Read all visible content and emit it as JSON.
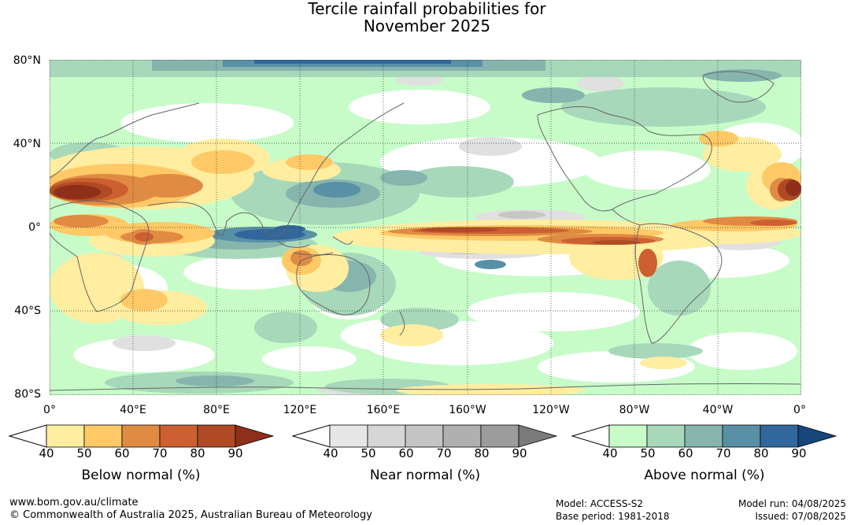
{
  "title_line1": "Tercile rainfall probabilities for",
  "title_line2": "November 2025",
  "map": {
    "lat_ticks": [
      "80°N",
      "40°N",
      "0°",
      "40°S",
      "80°S"
    ],
    "lon_ticks": [
      "0°",
      "40°E",
      "80°E",
      "120°E",
      "160°E",
      "160°W",
      "120°W",
      "80°W",
      "40°W",
      "0°"
    ]
  },
  "legends": [
    {
      "title": "Below normal (%)",
      "ticks": [
        "40",
        "50",
        "60",
        "70",
        "80",
        "90"
      ],
      "colors": [
        "#ffeda0",
        "#fec966",
        "#e08b43",
        "#cc6030",
        "#b04a25",
        "#8e2f1a"
      ]
    },
    {
      "title": "Near normal (%)",
      "ticks": [
        "40",
        "50",
        "60",
        "70",
        "80",
        "90"
      ],
      "colors": [
        "#e6e6e6",
        "#d6d6d6",
        "#c4c4c4",
        "#b0b0b0",
        "#9c9c9c",
        "#7a7a7a"
      ]
    },
    {
      "title": "Above normal (%)",
      "ticks": [
        "40",
        "50",
        "60",
        "70",
        "80",
        "90"
      ],
      "colors": [
        "#c7fcc9",
        "#a8d8ba",
        "#86b5ae",
        "#5890a6",
        "#31679c",
        "#15477a"
      ]
    }
  ],
  "footer": {
    "website": "www.bom.gov.au/climate",
    "copyright": "© Commonwealth of Australia 2025, Australian Bureau of Meteorology",
    "model": "Model: ACCESS-S2",
    "base_period": "Base period: 1981-2018",
    "model_run": "Model run: 04/08/2025",
    "issued": "Issued: 07/08/2025"
  }
}
